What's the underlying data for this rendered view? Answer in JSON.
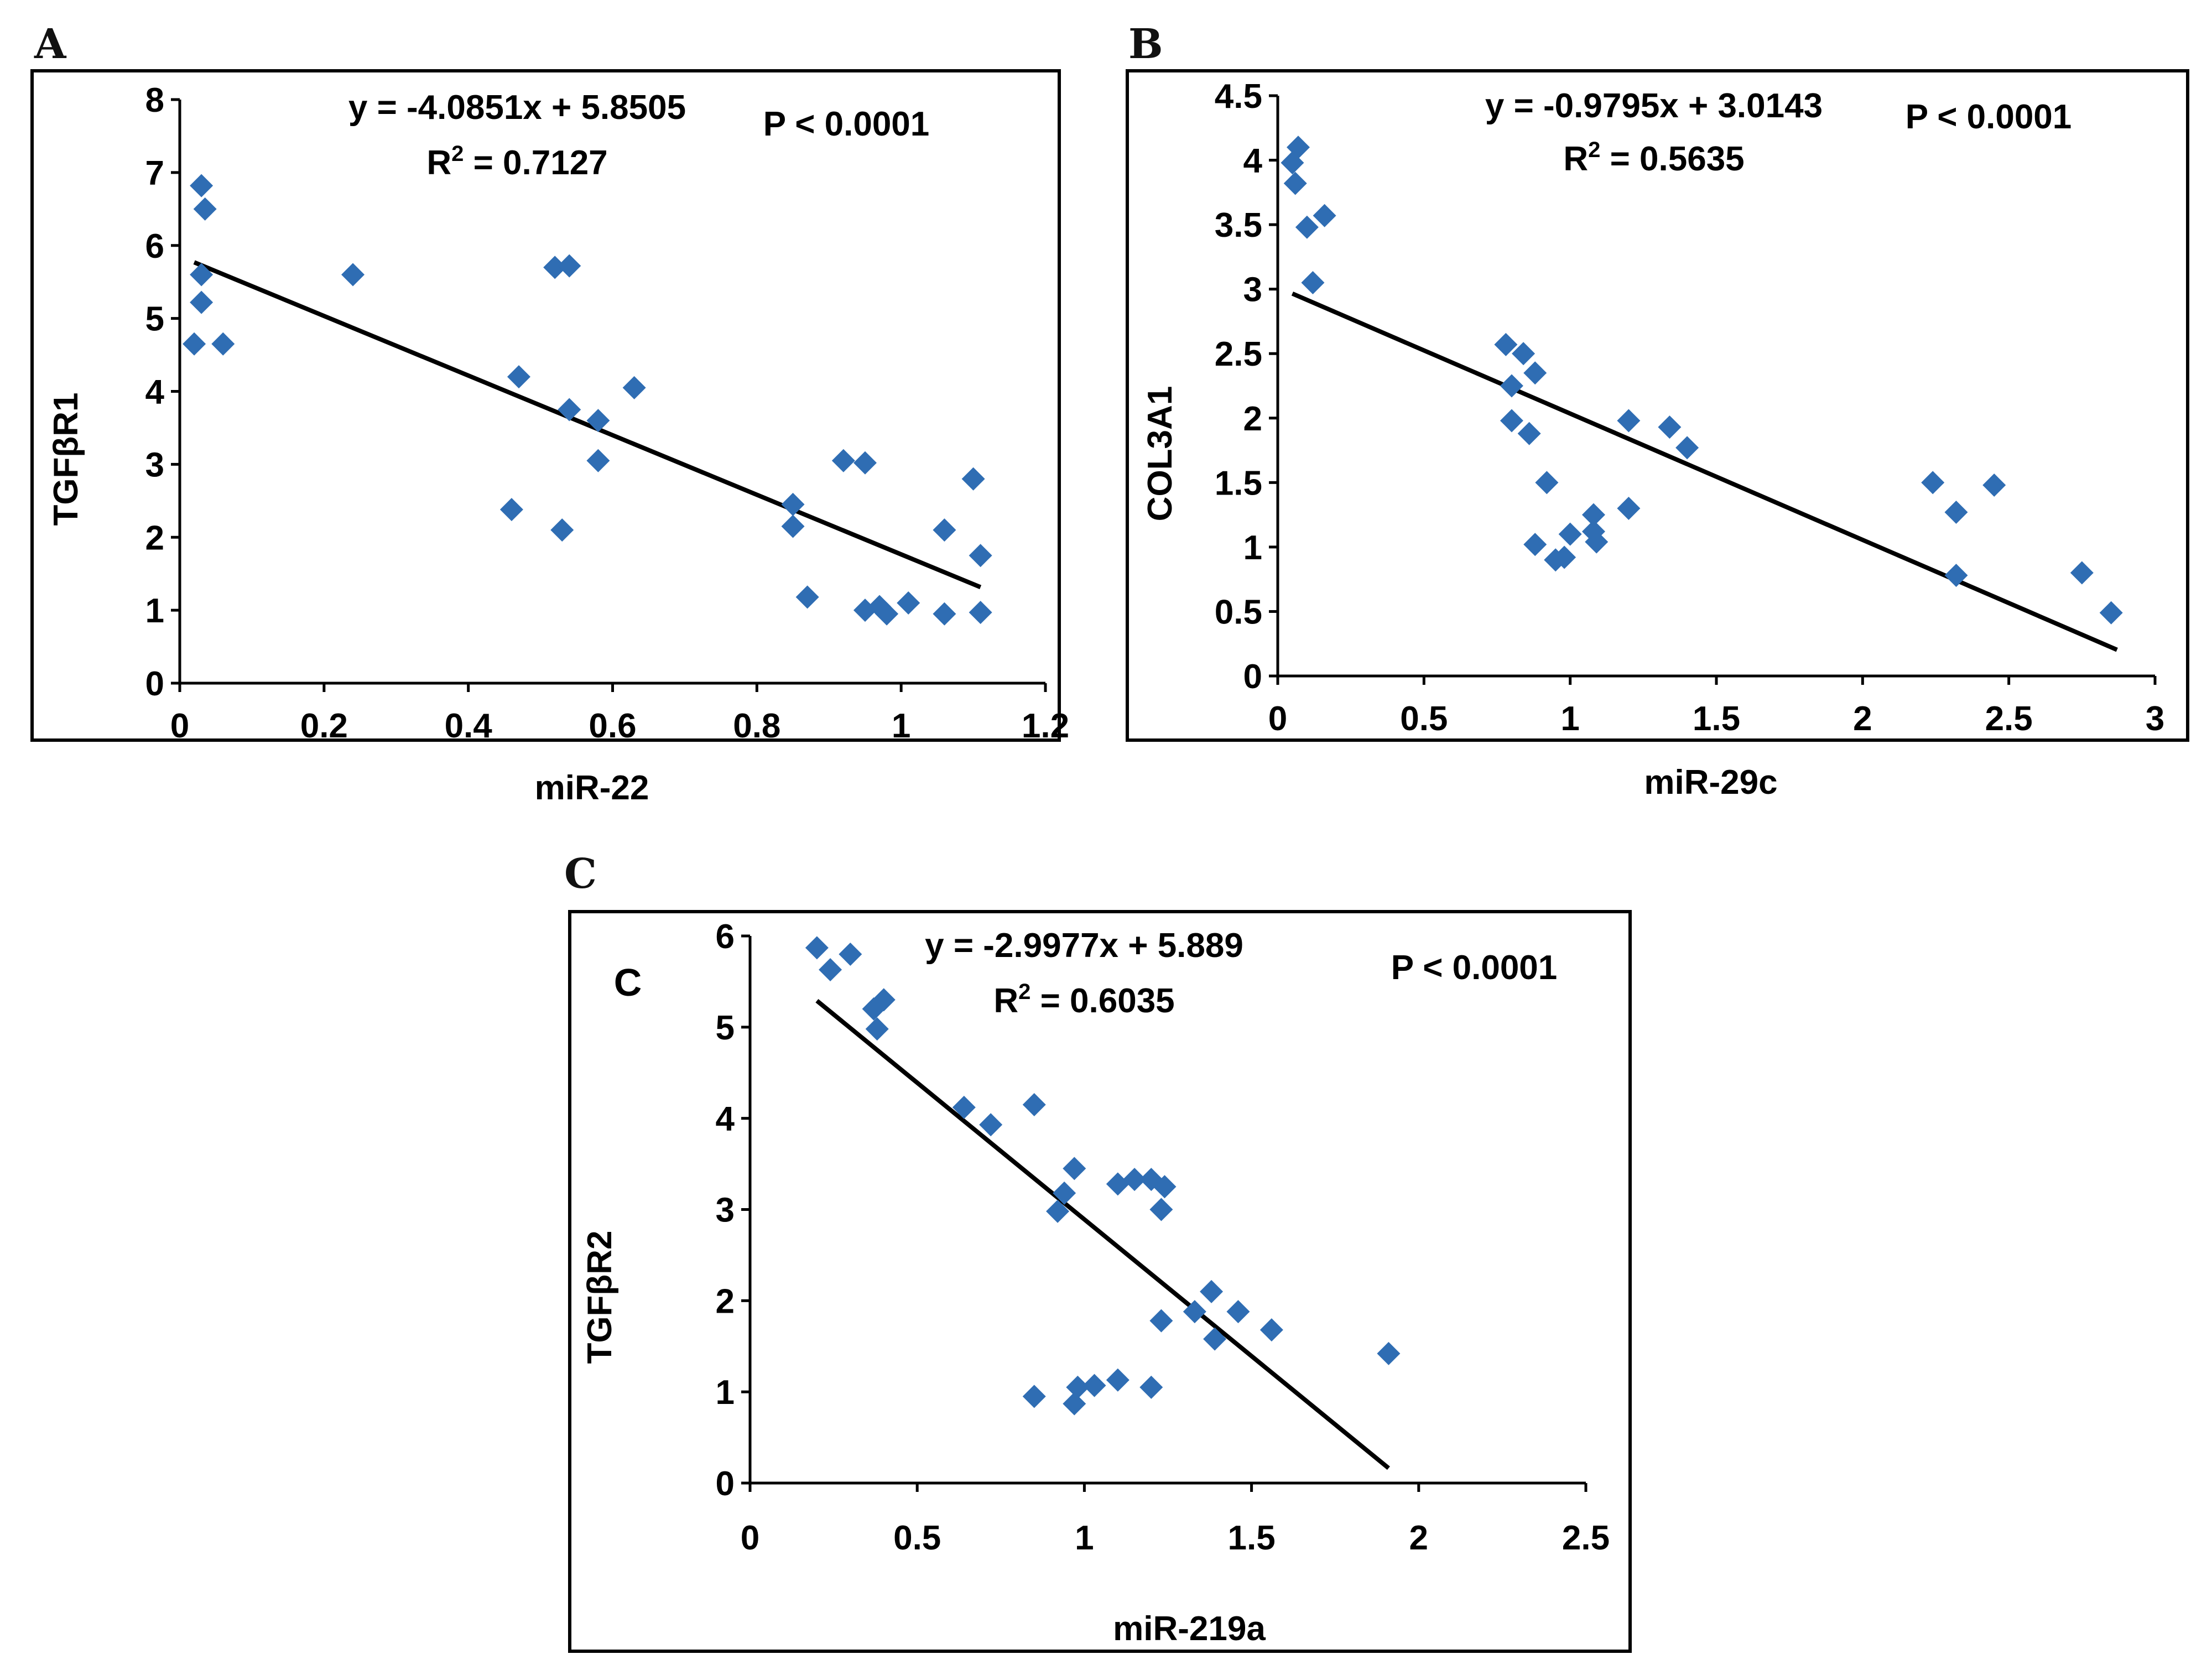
{
  "chart_data": [
    {
      "panel": "A",
      "type": "scatter",
      "xlabel": "miR-22",
      "ylabel": "TGFβR1",
      "xlim": [
        0,
        1.2
      ],
      "ylim": [
        0,
        8
      ],
      "xticks": [
        "0",
        "0.2",
        "0.4",
        "0.6",
        "0.8",
        "1",
        "1.2"
      ],
      "yticks": [
        "0",
        "1",
        "2",
        "3",
        "4",
        "5",
        "6",
        "7",
        "8"
      ],
      "equation": "y = -4.0851x + 5.8505",
      "r2_text": "0.7127",
      "p_value": "P < 0.0001",
      "trendline": {
        "slope": -4.0851,
        "intercept": 5.8505,
        "x_range": [
          0.02,
          1.11
        ]
      },
      "points": [
        [
          0.02,
          4.65
        ],
        [
          0.03,
          6.82
        ],
        [
          0.035,
          6.5
        ],
        [
          0.03,
          5.6
        ],
        [
          0.03,
          5.22
        ],
        [
          0.06,
          4.65
        ],
        [
          0.24,
          5.6
        ],
        [
          0.47,
          4.2
        ],
        [
          0.46,
          2.38
        ],
        [
          0.53,
          2.1
        ],
        [
          0.52,
          5.7
        ],
        [
          0.54,
          5.72
        ],
        [
          0.54,
          3.75
        ],
        [
          0.58,
          3.6
        ],
        [
          0.58,
          3.05
        ],
        [
          0.63,
          4.05
        ],
        [
          0.85,
          2.45
        ],
        [
          0.85,
          2.15
        ],
        [
          0.87,
          1.18
        ],
        [
          0.92,
          3.05
        ],
        [
          0.95,
          3.02
        ],
        [
          0.95,
          1.0
        ],
        [
          0.97,
          1.05
        ],
        [
          0.98,
          0.95
        ],
        [
          1.01,
          1.1
        ],
        [
          1.06,
          2.1
        ],
        [
          1.06,
          0.95
        ],
        [
          1.1,
          2.8
        ],
        [
          1.11,
          1.75
        ],
        [
          1.11,
          0.97
        ]
      ]
    },
    {
      "panel": "B",
      "type": "scatter",
      "xlabel": "miR-29c",
      "ylabel": "COL3A1",
      "xlim": [
        0,
        3
      ],
      "ylim": [
        0,
        4.5
      ],
      "xticks": [
        "0",
        "0.5",
        "1",
        "1.5",
        "2",
        "2.5",
        "3"
      ],
      "yticks": [
        "0",
        "0.5",
        "1",
        "1.5",
        "2",
        "2.5",
        "3",
        "3.5",
        "4",
        "4.5"
      ],
      "equation": "y = -0.9795x + 3.0143",
      "r2_text": "0.5635",
      "p_value": "P < 0.0001",
      "trendline": {
        "slope": -0.9795,
        "intercept": 3.0143,
        "x_range": [
          0.05,
          2.87
        ]
      },
      "points": [
        [
          0.05,
          3.98
        ],
        [
          0.07,
          4.1
        ],
        [
          0.06,
          3.82
        ],
        [
          0.1,
          3.48
        ],
        [
          0.16,
          3.57
        ],
        [
          0.12,
          3.05
        ],
        [
          0.78,
          2.57
        ],
        [
          0.84,
          2.5
        ],
        [
          0.8,
          2.25
        ],
        [
          0.88,
          2.35
        ],
        [
          0.8,
          1.98
        ],
        [
          0.86,
          1.88
        ],
        [
          0.92,
          1.5
        ],
        [
          0.88,
          1.02
        ],
        [
          0.95,
          0.9
        ],
        [
          0.98,
          0.92
        ],
        [
          1.0,
          1.1
        ],
        [
          1.08,
          1.25
        ],
        [
          1.08,
          1.12
        ],
        [
          1.09,
          1.04
        ],
        [
          1.2,
          1.98
        ],
        [
          1.2,
          1.3
        ],
        [
          1.34,
          1.93
        ],
        [
          1.4,
          1.77
        ],
        [
          2.24,
          1.5
        ],
        [
          2.32,
          1.27
        ],
        [
          2.45,
          1.48
        ],
        [
          2.32,
          0.78
        ],
        [
          2.75,
          0.8
        ],
        [
          2.85,
          0.49
        ]
      ]
    },
    {
      "panel": "C",
      "type": "scatter",
      "inner_label": "C",
      "xlabel": "miR-219a",
      "ylabel": "TGFβR2",
      "xlim": [
        0,
        2.5
      ],
      "ylim": [
        0,
        6
      ],
      "xticks": [
        "0",
        "0.5",
        "1",
        "1.5",
        "2",
        "2.5"
      ],
      "yticks": [
        "0",
        "1",
        "2",
        "3",
        "4",
        "5",
        "6"
      ],
      "equation": "y = -2.9977x + 5.889",
      "r2_text": "0.6035",
      "p_value": "P < 0.0001",
      "trendline": {
        "slope": -2.9977,
        "intercept": 5.889,
        "x_range": [
          0.2,
          1.91
        ]
      },
      "points": [
        [
          0.2,
          5.87
        ],
        [
          0.24,
          5.63
        ],
        [
          0.3,
          5.8
        ],
        [
          0.37,
          5.2
        ],
        [
          0.4,
          5.3
        ],
        [
          0.38,
          4.98
        ],
        [
          0.64,
          4.12
        ],
        [
          0.72,
          3.93
        ],
        [
          0.85,
          4.15
        ],
        [
          0.92,
          2.98
        ],
        [
          0.94,
          3.18
        ],
        [
          0.97,
          3.45
        ],
        [
          1.1,
          3.28
        ],
        [
          1.15,
          3.33
        ],
        [
          1.2,
          3.33
        ],
        [
          1.24,
          3.25
        ],
        [
          1.23,
          3.0
        ],
        [
          1.23,
          1.78
        ],
        [
          1.33,
          1.88
        ],
        [
          1.38,
          2.1
        ],
        [
          1.39,
          1.58
        ],
        [
          1.46,
          1.88
        ],
        [
          1.56,
          1.68
        ],
        [
          0.85,
          0.95
        ],
        [
          0.97,
          0.87
        ],
        [
          0.98,
          1.05
        ],
        [
          1.03,
          1.07
        ],
        [
          1.1,
          1.13
        ],
        [
          1.2,
          1.05
        ],
        [
          1.91,
          1.42
        ]
      ]
    }
  ]
}
